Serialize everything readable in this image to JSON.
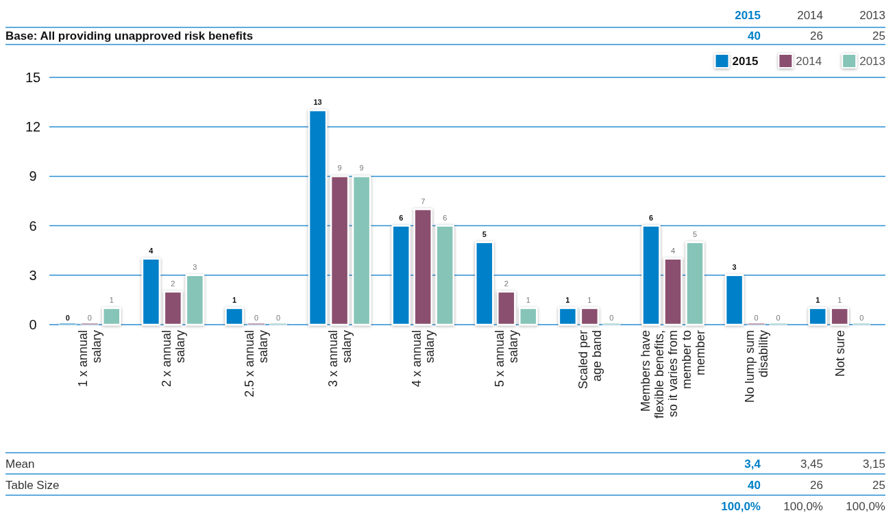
{
  "chart_data": {
    "type": "bar",
    "subtitle": "Base: All providing unapproved risk benefits",
    "categories": [
      "1 x annual\nsalary",
      "2 x annual\nsalary",
      "2.5 x annual\nsalary",
      "3 x annual\nsalary",
      "4 x annual\nsalary",
      "5 x annual\nsalary",
      "Scaled per\nage band",
      "Members have\nflexible benefits,\nso it varies from\nmember to\nmember",
      "No lump sum\ndisability",
      "Not sure"
    ],
    "series": [
      {
        "name": "2015",
        "color": "#0080c8",
        "values": [
          0,
          4,
          1,
          13,
          6,
          5,
          1,
          6,
          3,
          1
        ]
      },
      {
        "name": "2014",
        "color": "#8a4f6e",
        "values": [
          0,
          2,
          0,
          9,
          7,
          2,
          1,
          4,
          0,
          1
        ]
      },
      {
        "name": "2013",
        "color": "#86c4b8",
        "values": [
          1,
          3,
          0,
          9,
          6,
          1,
          0,
          5,
          0,
          0
        ]
      }
    ],
    "ylim": [
      0,
      15
    ],
    "yticks": [
      0,
      3,
      6,
      9,
      12,
      15
    ],
    "grid": "y",
    "legend": "top right",
    "data_labels": true,
    "annotations": [
      "40",
      "26",
      "25",
      "Mean",
      "3,4",
      "3,45",
      "3,15",
      "Table Size",
      "40",
      "26",
      "25",
      "100,0%",
      "100,0%",
      "100,0%"
    ]
  }
}
